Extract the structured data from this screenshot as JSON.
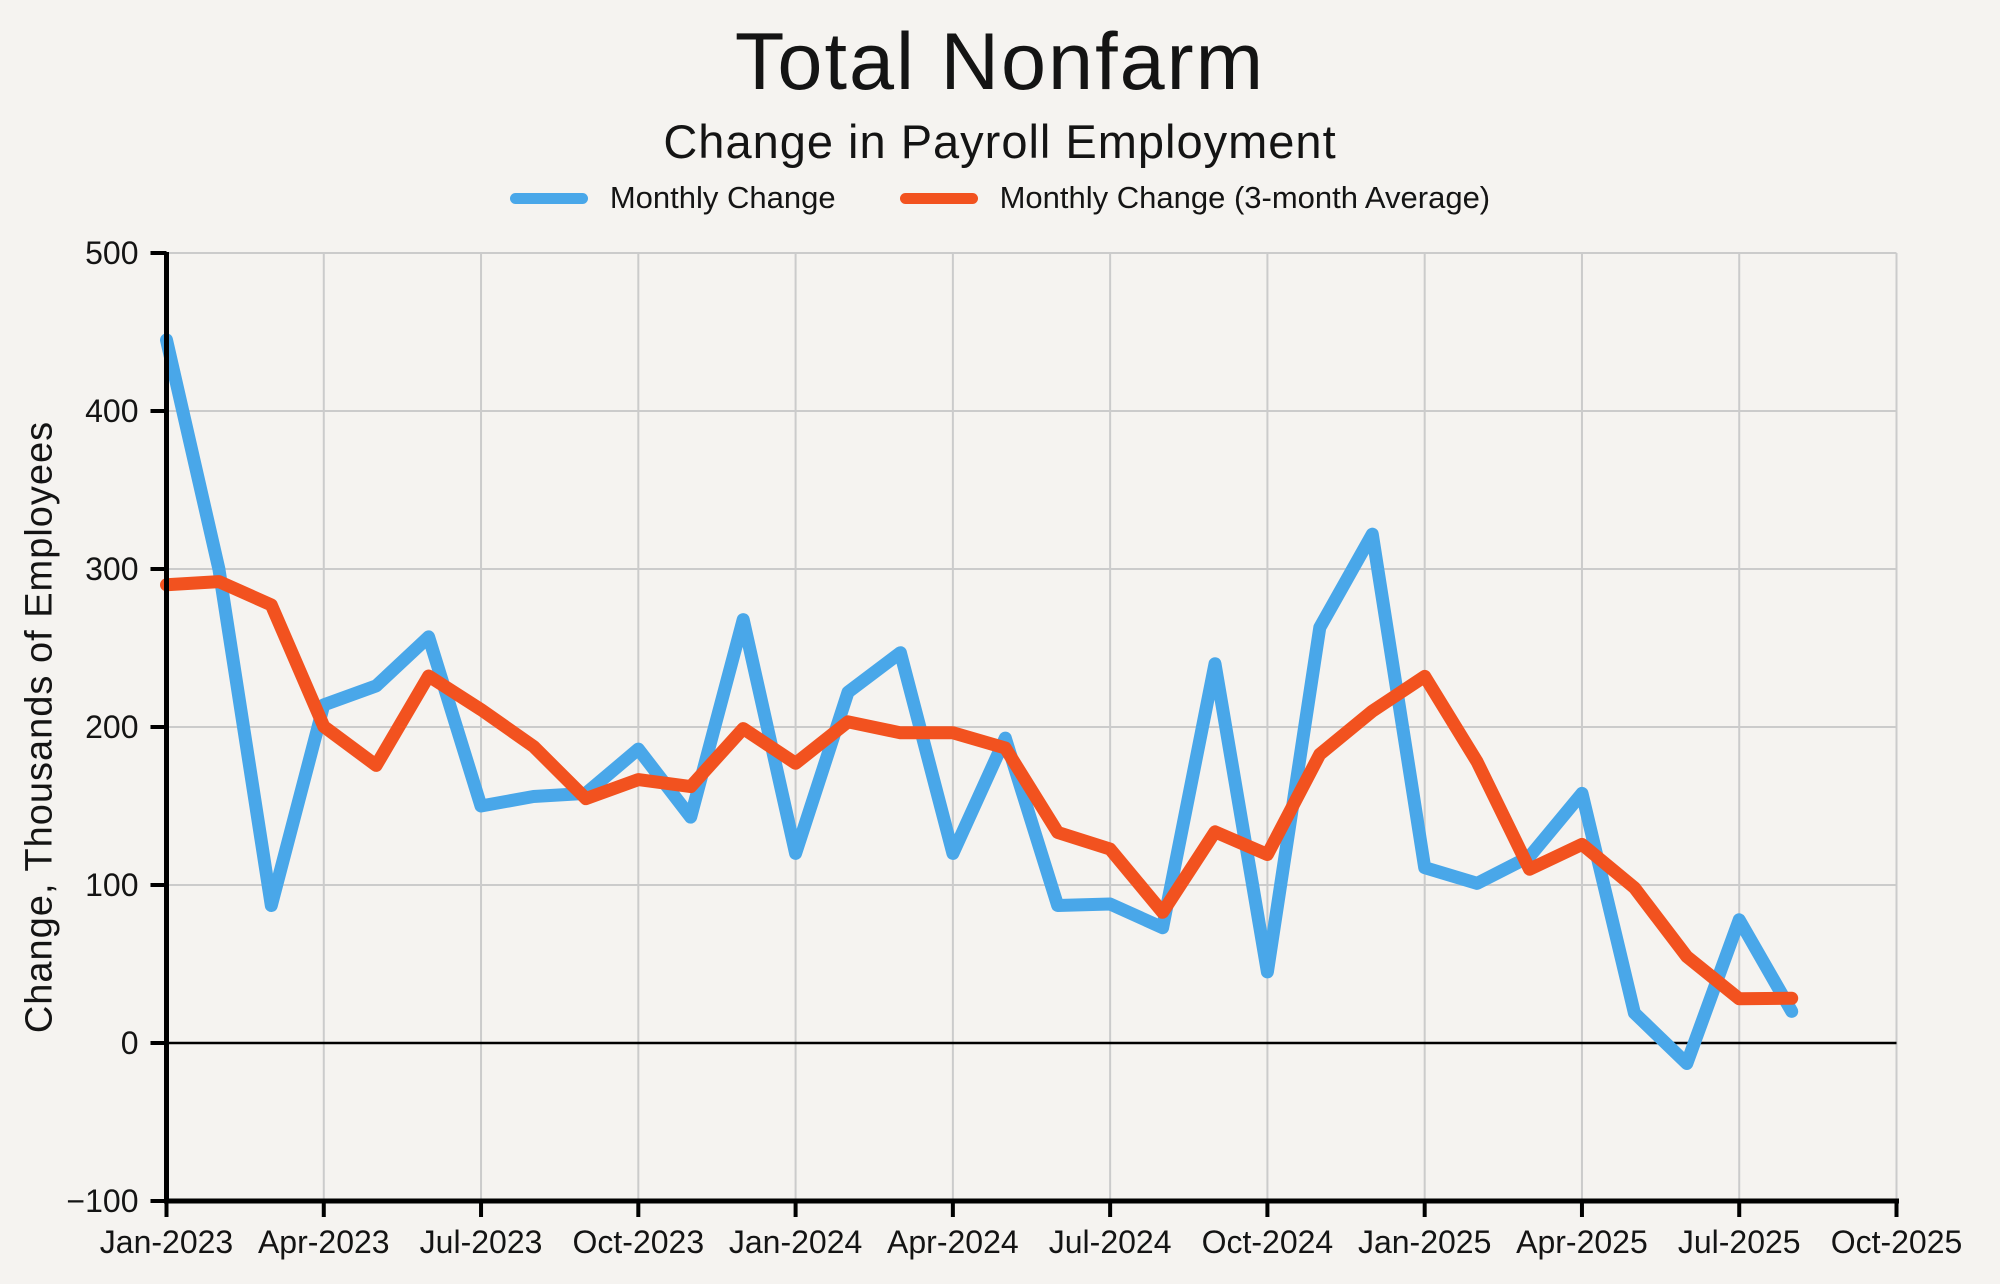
{
  "chart_data": {
    "type": "line",
    "title": "Total Nonfarm",
    "subtitle": "Change in Payroll Employment",
    "ylabel": "Change, Thousands of Employees",
    "xlabel": "",
    "ylim": [
      -100,
      500
    ],
    "grid": true,
    "legend_position": "top-center",
    "x": [
      "2023-01",
      "2023-02",
      "2023-03",
      "2023-04",
      "2023-05",
      "2023-06",
      "2023-07",
      "2023-08",
      "2023-09",
      "2023-10",
      "2023-11",
      "2023-12",
      "2024-01",
      "2024-02",
      "2024-03",
      "2024-04",
      "2024-05",
      "2024-06",
      "2024-07",
      "2024-08",
      "2024-09",
      "2024-10",
      "2024-11",
      "2024-12",
      "2025-01",
      "2025-02",
      "2025-03",
      "2025-04",
      "2025-05",
      "2025-06",
      "2025-07",
      "2025-08"
    ],
    "x_tick_labels": [
      "Jan-2023",
      "Apr-2023",
      "Jul-2023",
      "Oct-2023",
      "Jan-2024",
      "Apr-2024",
      "Jul-2024",
      "Oct-2024",
      "Jan-2025",
      "Apr-2025",
      "Jul-2025",
      "Oct-2025"
    ],
    "x_tick_positions": [
      0,
      3,
      6,
      9,
      12,
      15,
      18,
      21,
      24,
      27,
      30,
      33
    ],
    "x_axis_months_span": 33,
    "y_tick_values": [
      500,
      400,
      300,
      200,
      100,
      0,
      -100
    ],
    "y_tick_labels": [
      "500",
      "400",
      "300",
      "200",
      "100",
      "0",
      "−100"
    ],
    "series": [
      {
        "name": "Monthly Change",
        "color": "#49A7E9",
        "values": [
          445,
          300,
          87,
          214,
          226,
          257,
          150,
          156,
          158,
          186,
          143,
          268,
          120,
          222,
          247,
          120,
          193,
          87,
          88,
          73,
          240,
          45,
          263,
          322,
          111,
          101,
          118,
          158,
          19,
          -13,
          78,
          20
        ]
      },
      {
        "name": "Monthly Change (3-month Average)",
        "color": "#F2521F",
        "values": [
          290,
          292,
          277.3,
          200.3,
          175.7,
          232.3,
          211,
          187.7,
          154.7,
          166.7,
          162.3,
          199,
          177,
          203.3,
          196.3,
          196.3,
          186.7,
          133.3,
          122.7,
          82.7,
          133.7,
          119.3,
          182.7,
          210,
          232,
          178,
          110,
          125.7,
          98.3,
          54.7,
          28,
          28.3
        ]
      }
    ],
    "colors": {
      "background": "#F5F3F0",
      "grid": "#CBCBCB",
      "axis": "#000000",
      "zero_line": "#000000",
      "text": "#141414"
    }
  }
}
